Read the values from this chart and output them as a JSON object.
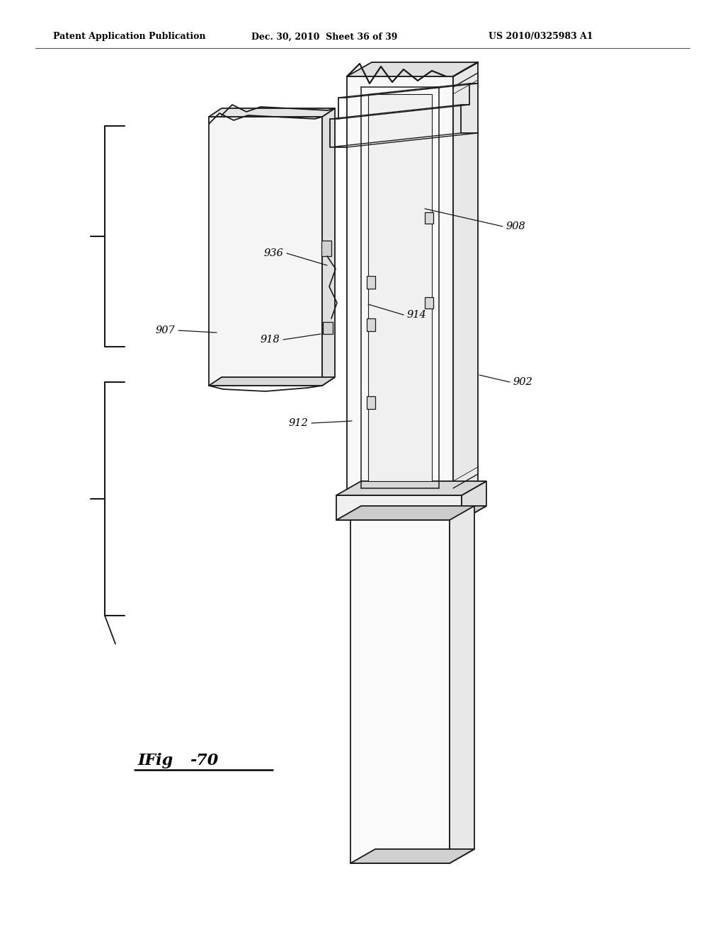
{
  "bg_color": "#ffffff",
  "header_left": "Patent Application Publication",
  "header_mid": "Dec. 30, 2010  Sheet 36 of 39",
  "header_right": "US 2010/0325983 A1",
  "fig_label": "IFig-70",
  "line_color": "#1a1a1a",
  "lw": 1.3
}
